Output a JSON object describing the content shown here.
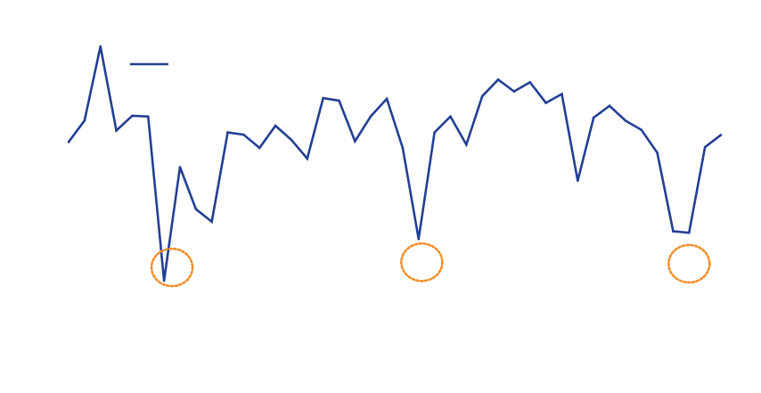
{
  "chart_data": {
    "type": "line",
    "title": "",
    "xlabel": "",
    "ylabel": "",
    "grid": false,
    "axes_visible": false,
    "legend": {
      "placement": "top-left",
      "entries": [
        {
          "label": "",
          "color": "#233f94"
        }
      ]
    },
    "ylim": [
      0,
      100
    ],
    "x": [
      0,
      1,
      2,
      3,
      4,
      5,
      6,
      7,
      8,
      9,
      10,
      11,
      12,
      13,
      14,
      15,
      16,
      17,
      18,
      19,
      20,
      21,
      22,
      23,
      24,
      25,
      26,
      27,
      28,
      29,
      30,
      31,
      32,
      33,
      34,
      35,
      36,
      37,
      38,
      39,
      40,
      41
    ],
    "series": [
      {
        "name": "",
        "color": "#233f94",
        "values": [
          65.5,
          71.3,
          91.4,
          68.6,
          72.6,
          72.4,
          27.9,
          58.7,
          47.3,
          43.9,
          68.1,
          67.5,
          63.9,
          69.9,
          66.1,
          61.0,
          77.4,
          76.7,
          65.7,
          72.5,
          77.2,
          63.9,
          39.2,
          68.1,
          72.4,
          64.8,
          77.9,
          82.4,
          79.2,
          81.7,
          76.1,
          78.5,
          55.0,
          72.1,
          75.3,
          71.3,
          68.8,
          62.6,
          41.3,
          40.9,
          64.1,
          67.4
        ]
      }
    ],
    "annotations": [
      {
        "type": "circle",
        "x": 6.5,
        "y": 31.5,
        "color": "#f28e2b"
      },
      {
        "type": "circle",
        "x": 22.2,
        "y": 32.9,
        "color": "#f28e2b"
      },
      {
        "type": "circle",
        "x": 39.0,
        "y": 32.5,
        "color": "#f28e2b"
      }
    ]
  }
}
